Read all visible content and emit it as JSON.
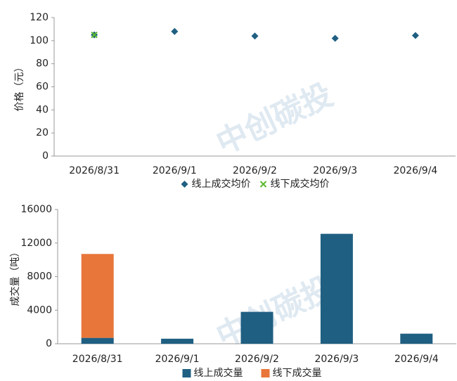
{
  "watermark": "中创碳投",
  "chart_data": [
    {
      "type": "scatter",
      "ylabel": "价格（元）",
      "categories": [
        "2026/8/31",
        "2026/9/1",
        "2026/9/2",
        "2026/9/3",
        "2026/9/4"
      ],
      "series": [
        {
          "name": "线上成交均价",
          "color": "#1f5f82",
          "marker": "diamond",
          "values": [
            105,
            108,
            104,
            102,
            104.5
          ]
        },
        {
          "name": "线下成交均价",
          "color": "#5cb82e",
          "marker": "x",
          "values": [
            105,
            null,
            null,
            null,
            null
          ]
        }
      ],
      "ylim": [
        0,
        120
      ],
      "yticks": [
        0,
        20,
        40,
        60,
        80,
        100,
        120
      ],
      "legend": "bottom"
    },
    {
      "type": "bar",
      "stacked": true,
      "ylabel": "成交量（吨）",
      "categories": [
        "2026/8/31",
        "2026/9/1",
        "2026/9/2",
        "2026/9/3",
        "2026/9/4"
      ],
      "series": [
        {
          "name": "线上成交量",
          "color": "#1f5f82",
          "values": [
            700,
            600,
            3800,
            13100,
            1200
          ]
        },
        {
          "name": "线下成交量",
          "color": "#e8763a",
          "values": [
            10000,
            null,
            null,
            null,
            null
          ]
        }
      ],
      "ylim": [
        0,
        16000
      ],
      "yticks": [
        0,
        4000,
        8000,
        12000,
        16000
      ],
      "legend": "bottom"
    }
  ]
}
